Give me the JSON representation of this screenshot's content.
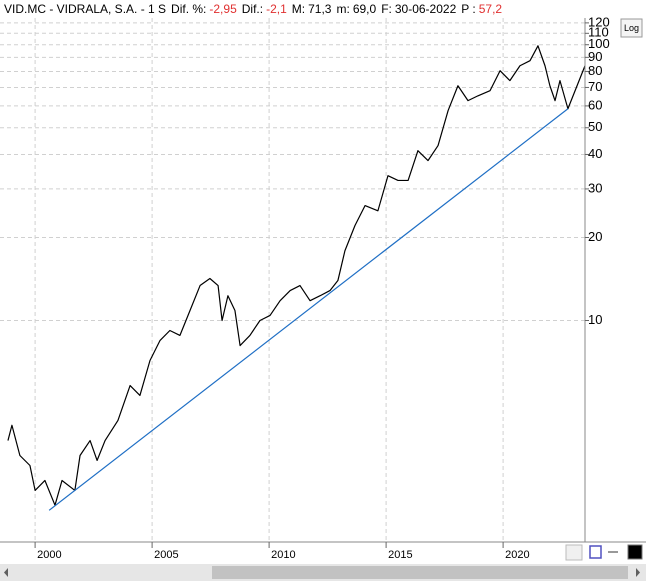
{
  "chart_data": {
    "type": "line",
    "header": {
      "symbol": "VID.MC - VIDRALA, S.A. -  1 S",
      "fields": [
        {
          "label": "Dif. %:",
          "value": "-2,95",
          "color": "#e03030"
        },
        {
          "label": "Dif.:",
          "value": "-2,1",
          "color": "#e03030"
        },
        {
          "label": "M:",
          "value": "71,3",
          "color": "#000000"
        },
        {
          "label": "m:",
          "value": "69,0",
          "color": "#000000"
        },
        {
          "label": "F:",
          "value": "30-06-2022",
          "color": "#000000"
        },
        {
          "label": "P :",
          "value": "57,2",
          "color": "#e03030"
        }
      ]
    },
    "log_button": "Log",
    "log_scale": true,
    "grid": true,
    "xlim": [
      1998.5,
      2023.5
    ],
    "xticks": [
      2000,
      2005,
      2010,
      2015,
      2020
    ],
    "ylim": [
      1.6,
      125
    ],
    "yticks": [
      10,
      20,
      30,
      40,
      50,
      60,
      70,
      80,
      90,
      100,
      110,
      120
    ],
    "series": [
      {
        "color": "#000000",
        "x": [
          1998.84,
          1999.01,
          1999.35,
          1999.78,
          2000.0,
          2000.42,
          2000.85,
          2001.15,
          2001.7,
          2001.92,
          2002.35,
          2002.65,
          2002.99,
          2003.54,
          2004.06,
          2004.48,
          2004.91,
          2005.34,
          2005.76,
          2006.19,
          2006.62,
          2007.05,
          2007.47,
          2007.82,
          2007.99,
          2008.24,
          2008.54,
          2008.76,
          2009.18,
          2009.61,
          2010.04,
          2010.47,
          2010.9,
          2011.32,
          2011.75,
          2012.18,
          2012.6,
          2012.94,
          2013.24,
          2013.67,
          2014.1,
          2014.65,
          2015.08,
          2015.51,
          2015.94,
          2016.36,
          2016.79,
          2017.22,
          2017.65,
          2018.07,
          2018.5,
          2018.93,
          2019.44,
          2019.87,
          2020.29,
          2020.72,
          2021.15,
          2021.49,
          2021.79,
          2022.0,
          2022.22,
          2022.43,
          2022.77,
          2023.5
        ],
        "values": [
          3.67,
          4.17,
          3.24,
          2.98,
          2.42,
          2.63,
          2.14,
          2.63,
          2.42,
          3.24,
          3.67,
          3.11,
          3.67,
          4.34,
          5.81,
          5.35,
          7.16,
          8.47,
          9.2,
          8.83,
          10.87,
          13.39,
          14.2,
          13.39,
          10,
          12.3,
          10.87,
          8.11,
          8.83,
          10,
          10.43,
          11.8,
          12.84,
          13.39,
          11.8,
          12.3,
          12.84,
          13.96,
          17.9,
          22.1,
          26.1,
          25.0,
          33.5,
          32.2,
          32.2,
          41.3,
          38.0,
          43.1,
          57.7,
          71.0,
          62.7,
          65.3,
          68.1,
          80.5,
          74.1,
          83.9,
          87.5,
          99.1,
          83.9,
          71.0,
          62.7,
          74.1,
          58.6,
          83.9
        ]
      },
      {
        "color": "#1f6fc5",
        "x": [
          2000.6,
          2022.77
        ],
        "values": [
          2.05,
          58.6
        ]
      }
    ]
  }
}
